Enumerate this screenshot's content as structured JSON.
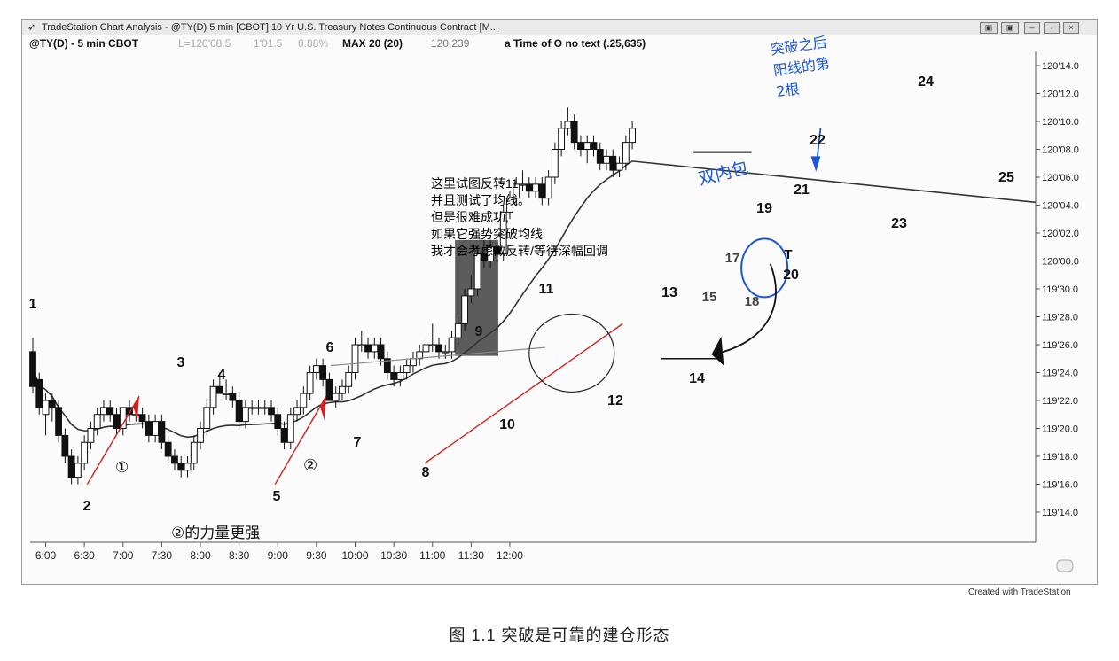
{
  "window": {
    "title": "TradeStation Chart Analysis - @TY(D) 5 min [CBOT] 10 Yr U.S. Treasury Notes Continuous Contract [M...",
    "buttons": [
      "▣",
      "▣",
      "–",
      "▫",
      "×"
    ]
  },
  "info": {
    "symbol": "@TY(D) - 5 min CBOT",
    "last": "L=120'08.5",
    "change": "1'01.5",
    "percent": "0.88%",
    "ma_label": "MAX 20 (20)",
    "ma_value": "120.239",
    "study": "a Time of O no text (.25,635)"
  },
  "footer": "Created with TradeStation",
  "caption": "图 1.1    突破是可靠的建仓形态",
  "annotations": {
    "note": "这里试图反转11\n并且测试了均线。\n但是很难成功,\n如果它强势突破均线\n我才会考虑做反转/等待深幅回调",
    "hw_top": "突破之后\n阳线的第\n2根",
    "hw_double": "双内包",
    "hw_bottom": "②的力量更强",
    "circle1": "①",
    "circle2": "②"
  },
  "chart_data": {
    "type": "candlestick",
    "instrument": "@TY(D) - 5 min CBOT",
    "y_axis_labels": [
      "120'14.0",
      "120'12.0",
      "120'10.0",
      "120'08.0",
      "120'06.0",
      "120'04.0",
      "120'02.0",
      "120'00.0",
      "119'30.0",
      "119'28.0",
      "119'26.0",
      "119'24.0",
      "119'22.0",
      "119'20.0",
      "119'18.0",
      "119'16.0",
      "119'14.0"
    ],
    "y_range_32nds": [
      14.0,
      46.0
    ],
    "x_labels": [
      "6:00",
      "6:30",
      "7:00",
      "7:30",
      "8:00",
      "8:30",
      "9:00",
      "9:30",
      "10:00",
      "10:30",
      "11:00",
      "11:30",
      "12:00"
    ],
    "bar_labels": [
      {
        "label": "1",
        "bar": 0
      },
      {
        "label": "2",
        "bar": 11
      },
      {
        "label": "3",
        "bar": 15
      },
      {
        "label": "4",
        "bar": 19
      },
      {
        "label": "5",
        "bar": 26
      },
      {
        "label": "6",
        "bar": 30
      },
      {
        "label": "7",
        "bar": 32
      },
      {
        "label": "8",
        "bar": 40
      },
      {
        "label": "9",
        "bar": 45
      },
      {
        "label": "10",
        "bar": 48
      },
      {
        "label": "11",
        "bar": 53
      },
      {
        "label": "12",
        "bar": 59
      },
      {
        "label": "13",
        "bar": 63
      },
      {
        "label": "14",
        "bar": 65
      },
      {
        "label": "15",
        "bar": 67
      },
      {
        "label": "17",
        "bar": 69
      },
      {
        "label": "18",
        "bar": 70
      },
      {
        "label": "19",
        "bar": 71
      },
      {
        "label": "20",
        "bar": 73
      },
      {
        "label": "21",
        "bar": 75
      },
      {
        "label": "22",
        "bar": 76
      },
      {
        "label": "23",
        "bar": 81
      },
      {
        "label": "24",
        "bar": 87
      },
      {
        "label": "25",
        "bar": 93
      }
    ],
    "ohlc": [
      [
        25.5,
        26.5,
        22.5,
        23.0
      ],
      [
        23.5,
        24.0,
        21.0,
        21.5
      ],
      [
        21.0,
        22.5,
        19.5,
        22.0
      ],
      [
        22.0,
        22.5,
        20.5,
        21.5
      ],
      [
        21.5,
        22.0,
        19.0,
        19.5
      ],
      [
        19.5,
        20.0,
        17.5,
        18.0
      ],
      [
        18.0,
        18.5,
        16.0,
        16.5
      ],
      [
        16.5,
        18.0,
        16.0,
        17.5
      ],
      [
        17.5,
        19.5,
        17.0,
        19.0
      ],
      [
        19.0,
        20.5,
        18.5,
        20.0
      ],
      [
        20.0,
        21.5,
        19.5,
        21.0
      ],
      [
        21.0,
        22.0,
        20.5,
        21.5
      ],
      [
        21.5,
        22.0,
        20.5,
        21.0
      ],
      [
        21.0,
        21.5,
        19.5,
        20.0
      ],
      [
        20.0,
        21.5,
        19.5,
        21.5
      ],
      [
        21.5,
        22.0,
        20.5,
        21.0
      ],
      [
        21.0,
        21.5,
        20.5,
        21.0
      ],
      [
        21.0,
        21.5,
        20.0,
        20.5
      ],
      [
        20.5,
        21.0,
        19.0,
        19.5
      ],
      [
        19.5,
        21.0,
        19.0,
        20.5
      ],
      [
        20.5,
        21.0,
        18.5,
        19.0
      ],
      [
        19.0,
        19.5,
        17.5,
        18.0
      ],
      [
        18.0,
        18.5,
        17.0,
        17.5
      ],
      [
        17.5,
        18.0,
        16.5,
        17.0
      ],
      [
        17.0,
        18.0,
        16.5,
        17.5
      ],
      [
        17.5,
        19.5,
        17.0,
        19.0
      ],
      [
        19.0,
        20.5,
        18.5,
        20.0
      ],
      [
        20.0,
        22.0,
        19.5,
        21.5
      ],
      [
        21.5,
        23.5,
        21.0,
        23.0
      ],
      [
        23.0,
        24.0,
        22.5,
        22.5
      ],
      [
        22.5,
        23.5,
        22.0,
        22.5
      ],
      [
        22.5,
        23.0,
        21.5,
        22.0
      ],
      [
        22.0,
        22.5,
        20.0,
        20.5
      ],
      [
        20.5,
        22.0,
        20.0,
        21.5
      ],
      [
        21.5,
        22.0,
        21.0,
        21.5
      ],
      [
        21.5,
        22.0,
        21.0,
        21.5
      ],
      [
        21.5,
        22.0,
        21.0,
        21.5
      ],
      [
        21.5,
        22.0,
        20.5,
        21.0
      ],
      [
        21.0,
        21.5,
        19.5,
        20.0
      ],
      [
        20.0,
        20.5,
        18.5,
        19.0
      ],
      [
        19.0,
        21.5,
        18.5,
        21.0
      ],
      [
        21.0,
        22.0,
        20.5,
        21.5
      ],
      [
        21.5,
        23.0,
        21.0,
        22.5
      ],
      [
        22.5,
        24.5,
        22.0,
        24.0
      ],
      [
        24.0,
        25.0,
        23.5,
        24.5
      ],
      [
        24.5,
        25.0,
        23.0,
        23.5
      ],
      [
        23.5,
        24.0,
        22.0,
        22.0
      ],
      [
        22.0,
        23.0,
        21.5,
        22.5
      ],
      [
        22.5,
        23.5,
        22.0,
        23.0
      ],
      [
        23.0,
        24.5,
        22.5,
        24.0
      ],
      [
        24.0,
        26.5,
        23.5,
        26.0
      ],
      [
        26.0,
        27.0,
        25.5,
        26.0
      ],
      [
        26.0,
        26.5,
        25.0,
        25.5
      ],
      [
        25.5,
        26.5,
        25.0,
        26.0
      ],
      [
        26.0,
        26.5,
        24.5,
        25.0
      ],
      [
        25.0,
        25.5,
        23.5,
        24.0
      ],
      [
        24.0,
        24.5,
        23.0,
        23.5
      ],
      [
        23.5,
        24.5,
        23.0,
        24.0
      ],
      [
        24.0,
        25.0,
        23.5,
        24.5
      ],
      [
        24.5,
        25.5,
        24.0,
        25.0
      ],
      [
        25.0,
        26.0,
        24.5,
        25.5
      ],
      [
        25.5,
        26.5,
        25.0,
        26.0
      ],
      [
        26.0,
        27.5,
        25.5,
        26.0
      ],
      [
        26.0,
        26.5,
        25.0,
        25.5
      ],
      [
        25.5,
        26.0,
        25.0,
        25.5
      ],
      [
        25.5,
        27.0,
        25.0,
        26.5
      ],
      [
        26.5,
        28.0,
        26.0,
        27.5
      ],
      [
        27.5,
        30.0,
        27.0,
        29.5
      ],
      [
        29.5,
        31.0,
        29.0,
        30.0
      ],
      [
        30.0,
        33.0,
        29.5,
        32.5
      ],
      [
        32.5,
        33.5,
        31.5,
        32.0
      ],
      [
        32.0,
        33.5,
        31.5,
        33.0
      ],
      [
        33.0,
        33.5,
        32.0,
        32.5
      ],
      [
        32.5,
        36.0,
        32.0,
        35.5
      ],
      [
        35.5,
        37.0,
        35.0,
        36.5
      ],
      [
        36.5,
        38.0,
        36.0,
        37.5
      ],
      [
        37.5,
        38.5,
        37.0,
        37.5
      ],
      [
        37.5,
        38.0,
        36.5,
        37.0
      ],
      [
        37.0,
        38.0,
        36.5,
        37.5
      ],
      [
        37.5,
        38.0,
        36.0,
        36.5
      ],
      [
        36.5,
        38.5,
        36.0,
        38.0
      ],
      [
        38.0,
        40.5,
        37.5,
        40.0
      ],
      [
        40.0,
        42.0,
        39.5,
        41.5
      ],
      [
        41.5,
        43.0,
        41.0,
        42.0
      ],
      [
        42.0,
        42.5,
        40.0,
        40.5
      ],
      [
        40.5,
        41.0,
        39.5,
        40.0
      ],
      [
        40.0,
        41.0,
        39.0,
        40.5
      ],
      [
        40.5,
        41.0,
        39.5,
        40.0
      ],
      [
        40.0,
        40.5,
        38.5,
        39.0
      ],
      [
        39.0,
        40.0,
        38.5,
        39.5
      ],
      [
        39.5,
        40.0,
        38.0,
        38.5
      ],
      [
        38.5,
        39.5,
        38.0,
        39.0
      ],
      [
        39.0,
        41.0,
        38.5,
        40.5
      ],
      [
        40.5,
        42.0,
        40.0,
        41.5
      ]
    ],
    "moving_average": {
      "name": "MAX 20 (20)",
      "value": "120.239"
    }
  }
}
